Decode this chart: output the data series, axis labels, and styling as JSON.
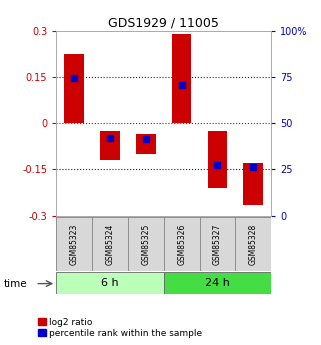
{
  "title": "GDS1929 / 11005",
  "samples": [
    "GSM85323",
    "GSM85324",
    "GSM85325",
    "GSM85326",
    "GSM85327",
    "GSM85328"
  ],
  "log2_bottom": [
    0.0,
    -0.12,
    -0.1,
    0.0,
    -0.21,
    -0.265
  ],
  "log2_top": [
    0.225,
    -0.025,
    -0.035,
    0.29,
    -0.025,
    -0.13
  ],
  "percentile_values": [
    0.148,
    -0.047,
    -0.05,
    0.125,
    -0.135,
    -0.143
  ],
  "groups": [
    {
      "label": "6 h",
      "indices": [
        0,
        1,
        2
      ],
      "color": "#bbffbb"
    },
    {
      "label": "24 h",
      "indices": [
        3,
        4,
        5
      ],
      "color": "#44dd44"
    }
  ],
  "ylim_left": [
    -0.3,
    0.3
  ],
  "ylim_right": [
    0,
    100
  ],
  "yticks_left": [
    -0.3,
    -0.15,
    0.0,
    0.15,
    0.3
  ],
  "yticks_right": [
    0,
    25,
    50,
    75,
    100
  ],
  "ytick_labels_left": [
    "-0.3",
    "-0.15",
    "0",
    "0.15",
    "0.3"
  ],
  "ytick_labels_right": [
    "0",
    "25",
    "50",
    "75",
    "100%"
  ],
  "hlines": [
    0.15,
    0.0,
    -0.15
  ],
  "hline_colors": [
    "#222222",
    "#cc0000",
    "#222222"
  ],
  "hline_styles": [
    "dotted",
    "dotted",
    "dotted"
  ],
  "bar_color": "#cc0000",
  "percentile_color": "#0000cc",
  "bar_width": 0.55,
  "left_tick_color": "#cc0000",
  "right_tick_color": "#0000cc",
  "legend_items": [
    "log2 ratio",
    "percentile rank within the sample"
  ],
  "legend_colors": [
    "#cc0000",
    "#0000cc"
  ],
  "time_label": "time",
  "sample_bg_color": "#d8d8d8",
  "title_fontsize": 9
}
